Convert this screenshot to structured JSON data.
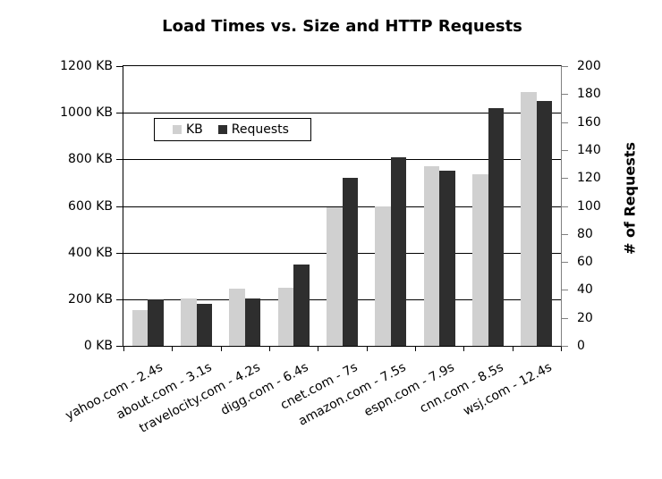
{
  "title": "Load Times vs. Size and HTTP Requests",
  "chart_data": {
    "type": "bar",
    "title": "Load Times vs. Size and HTTP Requests",
    "categories": [
      "yahoo.com - 2.4s",
      "about.com - 3.1s",
      "travelocity.com - 4.2s",
      "digg.com - 6.4s",
      "cnet.com - 7s",
      "amazon.com - 7.5s",
      "espn.com - 7.9s",
      "cnn.com - 8.5s",
      "wsj.com - 12.4s"
    ],
    "series": [
      {
        "name": "KB",
        "axis": "left",
        "color": "#d0d0d0",
        "values": [
          155,
          205,
          245,
          250,
          595,
          600,
          770,
          735,
          1090
        ]
      },
      {
        "name": "Requests",
        "axis": "right",
        "color": "#2e2e2e",
        "values": [
          33,
          30,
          34,
          58,
          120,
          135,
          125,
          170,
          175
        ]
      }
    ],
    "left_axis": {
      "min": 0,
      "max": 1200,
      "step": 200,
      "tick_suffix": " KB"
    },
    "right_axis": {
      "min": 0,
      "max": 200,
      "step": 20,
      "label": "# of Requests"
    },
    "grid": true,
    "legend_position": "inside-top-left",
    "colors": {
      "gridline": "#000000",
      "axis_line": "#000000",
      "right_axis_line": "#808080",
      "background": "#ffffff"
    }
  }
}
